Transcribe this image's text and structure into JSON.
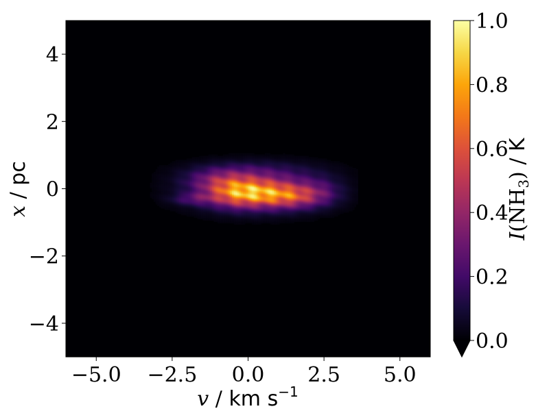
{
  "chart_data": {
    "type": "heatmap",
    "title": "",
    "xlabel": {
      "symbol": "v",
      "sep": " / ",
      "unit": "km s",
      "unit_exp": "−1"
    },
    "ylabel": {
      "symbol": "x",
      "sep": " / ",
      "unit": "pc"
    },
    "xlim": [
      -6,
      6
    ],
    "ylim": [
      -5,
      5
    ],
    "xticks": [
      {
        "value": -5.0,
        "label": "−5.0"
      },
      {
        "value": -2.5,
        "label": "−2.5"
      },
      {
        "value": 0.0,
        "label": "0.0"
      },
      {
        "value": 2.5,
        "label": "2.5"
      },
      {
        "value": 5.0,
        "label": "5.0"
      }
    ],
    "yticks": [
      {
        "value": -4,
        "label": "−4"
      },
      {
        "value": -2,
        "label": "−2"
      },
      {
        "value": 0,
        "label": "0"
      },
      {
        "value": 2,
        "label": "2"
      },
      {
        "value": 4,
        "label": "4"
      }
    ],
    "colormap": "inferno",
    "colorbar": {
      "label": {
        "symbol": "I",
        "molecule": "(NH",
        "sub": "3",
        "close": ")",
        "sep": " / ",
        "unit": "K"
      },
      "range": [
        0.0,
        1.0
      ],
      "extend": "min",
      "ticks": [
        {
          "value": 0.0,
          "label": "0.0"
        },
        {
          "value": 0.2,
          "label": "0.2"
        },
        {
          "value": 0.4,
          "label": "0.4"
        },
        {
          "value": 0.6,
          "label": "0.6"
        },
        {
          "value": 0.8,
          "label": "0.8"
        },
        {
          "value": 1.0,
          "label": "1.0"
        }
      ]
    },
    "emission_clumps": [
      {
        "v": 0.3,
        "x": -0.05,
        "sigma_v": 1.55,
        "sigma_x": 0.42,
        "peak": 0.22
      },
      {
        "v": -0.3,
        "x": -0.15,
        "sigma_v": 0.75,
        "sigma_x": 0.28,
        "peak": 0.55
      },
      {
        "v": 0.9,
        "x": -0.1,
        "sigma_v": 0.9,
        "sigma_x": 0.3,
        "peak": 0.42
      },
      {
        "v": -0.8,
        "x": 0.25,
        "sigma_v": 0.8,
        "sigma_x": 0.25,
        "peak": 0.3
      },
      {
        "v": 1.5,
        "x": -0.25,
        "sigma_v": 0.7,
        "sigma_x": 0.22,
        "peak": 0.28
      },
      {
        "v": -1.8,
        "x": -0.3,
        "sigma_v": 0.5,
        "sigma_x": 0.12,
        "peak": 0.18
      },
      {
        "v": 0.3,
        "x": 0.55,
        "sigma_v": 1.4,
        "sigma_x": 0.22,
        "peak": 0.12
      },
      {
        "v": 2.4,
        "x": -0.05,
        "sigma_v": 0.5,
        "sigma_x": 0.3,
        "peak": 0.12
      }
    ]
  }
}
